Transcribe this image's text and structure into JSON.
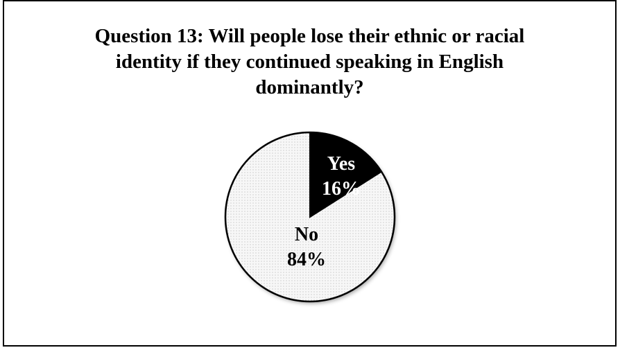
{
  "chart_data": {
    "type": "pie",
    "title_lines": [
      "Question 13: Will people lose their ethnic or racial",
      "identity if they continued speaking in English",
      "dominantly?"
    ],
    "slices": [
      {
        "label": "Yes",
        "value": 16,
        "value_label": "16%",
        "color": "#000000",
        "text_color": "#ffffff"
      },
      {
        "label": "No",
        "value": 84,
        "value_label": "84%",
        "color": "#f4f4f4",
        "text_color": "#000000"
      }
    ],
    "start_angle_deg": 0,
    "direction": "clockwise",
    "legend": "none",
    "pattern": "dotted"
  }
}
